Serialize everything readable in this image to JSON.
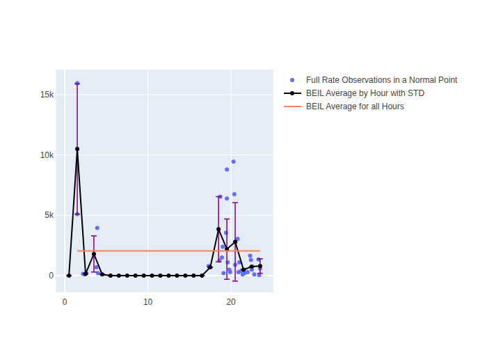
{
  "chart_data": {
    "type": "scatter",
    "xlim": [
      -1.1,
      25.1
    ],
    "ylim": [
      -1380,
      17080
    ],
    "xticks": [
      0,
      10,
      20
    ],
    "yticks": [
      0,
      {
        "value": 5000,
        "label": "5k"
      },
      {
        "value": 10000,
        "label": "10k"
      },
      {
        "value": 15000,
        "label": "15k"
      }
    ],
    "grid": true,
    "legend": "right",
    "series": [
      {
        "name": "Full Rate Observations in a Normal Point",
        "type": "scatter",
        "marker": "circle",
        "color": "#636efa",
        "x": [
          1.5,
          1.5,
          2.2,
          2.4,
          2.6,
          3.8,
          3.9,
          4.0,
          17.3,
          18.6,
          18.7,
          18.9,
          19.0,
          19.1,
          19.4,
          19.5,
          19.5,
          19.6,
          19.8,
          19.9,
          20.3,
          20.4,
          20.5,
          20.8,
          20.9,
          21.0,
          21.2,
          21.4,
          21.6,
          22.0,
          22.3,
          22.4,
          22.5,
          22.8,
          23.3,
          23.4,
          23.5
        ],
        "values": [
          15950,
          5100,
          150,
          100,
          200,
          700,
          3950,
          200,
          800,
          1250,
          6550,
          1500,
          2400,
          200,
          3550,
          8800,
          6400,
          1100,
          500,
          300,
          9450,
          6750,
          900,
          3050,
          300,
          1100,
          400,
          100,
          200,
          300,
          1650,
          1300,
          500,
          100,
          1350,
          50,
          600
        ]
      },
      {
        "name": "BEIL Average by Hour with STD",
        "type": "line",
        "marker": "circle",
        "color": "#000000",
        "x": [
          0.5,
          1.5,
          2.5,
          3.5,
          4.5,
          5.5,
          6.5,
          7.5,
          8.5,
          9.5,
          10.5,
          11.5,
          12.5,
          13.5,
          14.5,
          15.5,
          16.5,
          17.5,
          18.5,
          19.5,
          20.5,
          21.5,
          22.5,
          23.5
        ],
        "values": [
          0,
          10500,
          150,
          1800,
          100,
          0,
          0,
          0,
          0,
          0,
          0,
          0,
          0,
          0,
          0,
          0,
          0,
          700,
          3850,
          2200,
          2800,
          500,
          750,
          800
        ],
        "error": [
          0,
          5400,
          0,
          1500,
          0,
          0,
          0,
          0,
          0,
          0,
          0,
          0,
          0,
          0,
          0,
          0,
          0,
          0,
          2700,
          2500,
          3250,
          0,
          0,
          600
        ],
        "error_color": "#800080"
      },
      {
        "name": "BEIL Average for all Hours",
        "type": "line",
        "line_style": "solid",
        "color": "#ff7f50",
        "x": [
          1.5,
          23.5
        ],
        "values": [
          2050,
          2050
        ]
      }
    ]
  }
}
